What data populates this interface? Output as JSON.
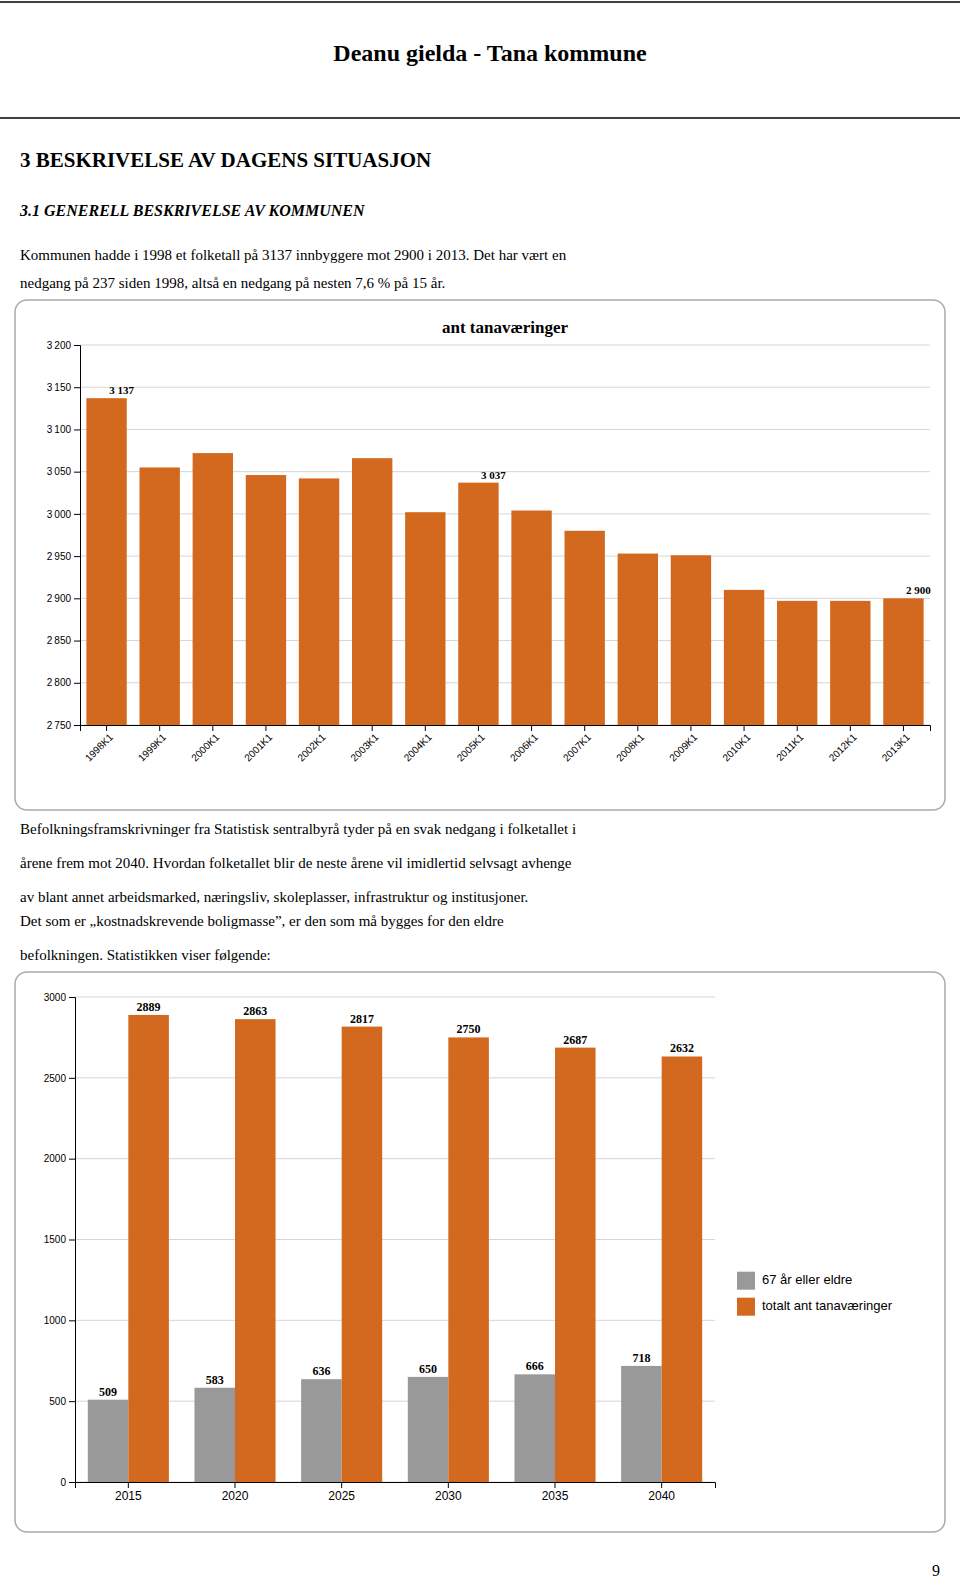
{
  "page_title": "Deanu gielda - Tana kommune",
  "section_title": "3 BESKRIVELSE AV DAGENS SITUASJON",
  "subsection_title": "3.1 GENERELL BESKRIVELSE AV KOMMUNEN",
  "paragraphs": [
    [
      "Kommunen hadde i 1998 et folketall på 3137 innbyggere mot 2900 i 2013. Det har vært en",
      "nedgang på 237 siden 1998, altså en nedgang på nesten 7,6 % på 15 år."
    ],
    [
      "Befolkningsframskrivninger fra Statistisk sentralbyrå tyder på en svak nedgang i folketallet i",
      "årene frem mot 2040. Hvordan folketallet blir de neste årene vil imidlertid selvsagt avhenge",
      "av blant annet arbeidsmarked, næringsliv, skoleplasser, infrastruktur og institusjoner."
    ],
    [
      "Det som er „kostnadskrevende boligmasse”, er den som må bygges for den eldre",
      "befolkningen. Statistikken viser følgende:"
    ]
  ],
  "page_number": "9",
  "chart_data": [
    {
      "type": "bar",
      "title": "ant tanaværinger",
      "categories": [
        "1998K1",
        "1999K1",
        "2000K1",
        "2001K1",
        "2002K1",
        "2003K1",
        "2004K1",
        "2005K1",
        "2006K1",
        "2007K1",
        "2008K1",
        "2009K1",
        "2010K1",
        "2011K1",
        "2012K1",
        "2013K1"
      ],
      "values": [
        3137,
        3055,
        3072,
        3046,
        3042,
        3066,
        3002,
        3037,
        3004,
        2980,
        2953,
        2951,
        2910,
        2897,
        2897,
        2900
      ],
      "value_labels": [
        "3 137",
        null,
        null,
        null,
        null,
        null,
        null,
        "3 037",
        null,
        null,
        null,
        null,
        null,
        null,
        null,
        "2 900"
      ],
      "color": "#D2691E",
      "ylim": [
        2750,
        3200
      ],
      "yticks": [
        {
          "value": 2750,
          "label": "2 750"
        },
        {
          "value": 2800,
          "label": "2 800"
        },
        {
          "value": 2850,
          "label": "2 850"
        },
        {
          "value": 2900,
          "label": "2 900"
        },
        {
          "value": 2950,
          "label": "2 950"
        },
        {
          "value": 3000,
          "label": "3 000"
        },
        {
          "value": 3050,
          "label": "3 050"
        },
        {
          "value": 3100,
          "label": "3 100"
        },
        {
          "value": 3150,
          "label": "3 150"
        },
        {
          "value": 3200,
          "label": "3 200"
        }
      ],
      "grid": true
    },
    {
      "type": "bar",
      "categories": [
        2015,
        2020,
        2025,
        2030,
        2035,
        2040
      ],
      "series": [
        {
          "name": "67 år eller eldre",
          "color": "#999999",
          "values": [
            509,
            583,
            636,
            650,
            666,
            718
          ]
        },
        {
          "name": "totalt ant tanaværinger",
          "color": "#D2691E",
          "values": [
            2889,
            2863,
            2817,
            2750,
            2687,
            2632
          ]
        }
      ],
      "ylim": [
        0,
        3000
      ],
      "yticks": [
        0,
        500,
        1000,
        1500,
        2000,
        2500,
        3000
      ],
      "grid": true,
      "data_labels": true,
      "legend": "right"
    }
  ]
}
